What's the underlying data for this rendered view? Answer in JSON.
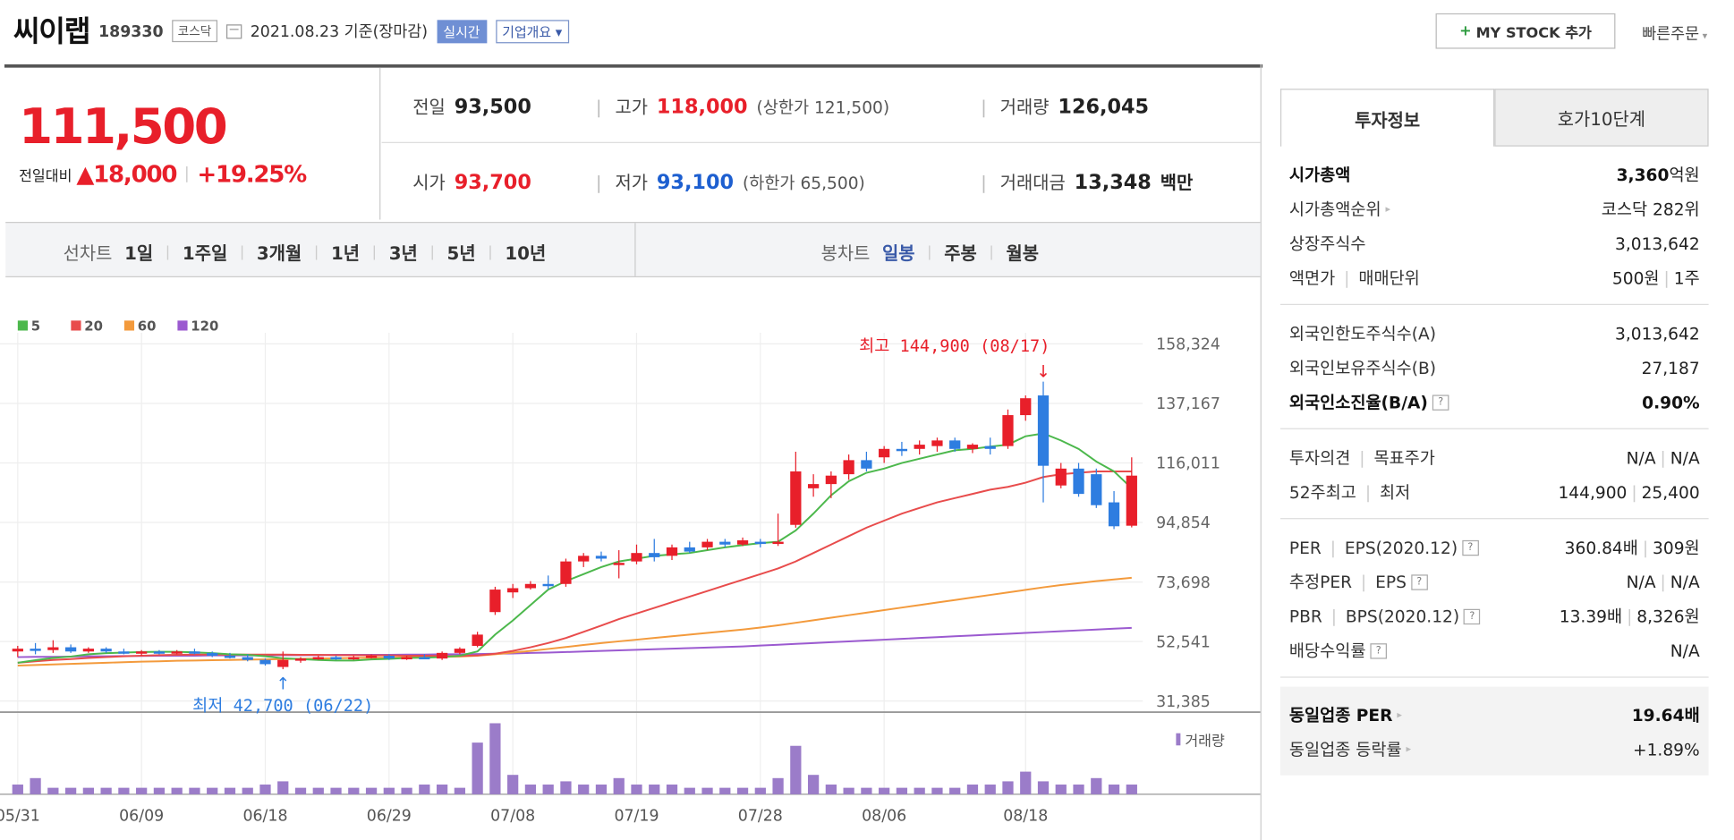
{
  "header": {
    "name": "씨이랩",
    "code": "189330",
    "market": "코스닥",
    "date_text": "2021.08.23 기준(장마감)",
    "realtime": "실시간",
    "overview": "기업개요",
    "my_stock": "MY STOCK 추가",
    "quick_order": "빠른주문"
  },
  "price": {
    "current": "111,500",
    "change_label": "전일대비",
    "change": "18,000",
    "change_pct": "+19.25%"
  },
  "stats": {
    "prev_label": "전일",
    "prev": "93,500",
    "high_label": "고가",
    "high": "118,000",
    "upper_limit": "(상한가 121,500)",
    "volume_label": "거래량",
    "volume": "126,045",
    "open_label": "시가",
    "open": "93,700",
    "low_label": "저가",
    "low": "93,100",
    "lower_limit": "(하한가 65,500)",
    "amount_label": "거래대금",
    "amount": "13,348",
    "amount_unit": "백만"
  },
  "tabs": {
    "line_title": "선차트",
    "line": [
      "1일",
      "1주일",
      "3개월",
      "1년",
      "3년",
      "5년",
      "10년"
    ],
    "candle_title": "봉차트",
    "candle": [
      "일봉",
      "주봉",
      "월봉"
    ],
    "candle_active": "일봉"
  },
  "chart_data": {
    "type": "candlestick",
    "legend": [
      "5",
      "20",
      "60",
      "120"
    ],
    "legend_colors": [
      "#4cb84c",
      "#e84c4c",
      "#f39a3c",
      "#9b5ad0"
    ],
    "up_color": "#e81f2a",
    "down_color": "#2e7de0",
    "y_ticks": [
      "158,324",
      "137,167",
      "116,011",
      "94,854",
      "73,698",
      "52,541",
      "31,385"
    ],
    "ylim": [
      31385,
      158324
    ],
    "x_ticks": [
      "05/31",
      "06/09",
      "06/18",
      "06/29",
      "07/08",
      "07/19",
      "07/28",
      "08/06",
      "08/18"
    ],
    "x_tick_index": [
      0,
      7,
      14,
      21,
      28,
      35,
      42,
      49,
      57
    ],
    "high_label": "최고 144,900 (08/17)",
    "low_label": "최저 42,700 (06/22)",
    "volume_label": "거래량",
    "candles": [
      [
        49000,
        51000,
        47000,
        50000
      ],
      [
        50000,
        52000,
        48000,
        49500
      ],
      [
        49500,
        53000,
        48500,
        50500
      ],
      [
        50500,
        51500,
        48500,
        49000
      ],
      [
        49000,
        50500,
        48500,
        50000
      ],
      [
        50000,
        50500,
        48500,
        49000
      ],
      [
        49000,
        50000,
        48000,
        48500
      ],
      [
        48500,
        49500,
        47500,
        49000
      ],
      [
        49000,
        49500,
        48000,
        48500
      ],
      [
        48500,
        49500,
        48000,
        49000
      ],
      [
        49000,
        50000,
        48000,
        48500
      ],
      [
        48500,
        49000,
        47000,
        47500
      ],
      [
        47500,
        48500,
        46500,
        47000
      ],
      [
        47000,
        48000,
        45500,
        46000
      ],
      [
        46000,
        46500,
        44000,
        44500
      ],
      [
        43500,
        49000,
        42700,
        46000
      ],
      [
        46000,
        47000,
        45000,
        46500
      ],
      [
        46500,
        47500,
        46000,
        47000
      ],
      [
        47000,
        47500,
        46000,
        46500
      ],
      [
        46500,
        47500,
        46000,
        47000
      ],
      [
        47000,
        48000,
        46500,
        47500
      ],
      [
        47500,
        48000,
        46000,
        46500
      ],
      [
        46500,
        47500,
        46000,
        47000
      ],
      [
        47000,
        48000,
        46500,
        46500
      ],
      [
        46500,
        49000,
        46000,
        48500
      ],
      [
        48500,
        50500,
        48000,
        50000
      ],
      [
        51000,
        56000,
        50500,
        55000
      ],
      [
        63000,
        72000,
        62000,
        71000
      ],
      [
        70000,
        73000,
        68000,
        71500
      ],
      [
        71500,
        74000,
        71000,
        73000
      ],
      [
        73000,
        76000,
        71000,
        72500
      ],
      [
        73000,
        82000,
        72000,
        81000
      ],
      [
        81000,
        84000,
        79000,
        83000
      ],
      [
        83000,
        84500,
        81000,
        82000
      ],
      [
        80000,
        85000,
        75000,
        80500
      ],
      [
        81000,
        87000,
        80000,
        84000
      ],
      [
        84000,
        89000,
        81000,
        82500
      ],
      [
        83000,
        87000,
        81500,
        86000
      ],
      [
        86000,
        88000,
        84000,
        84500
      ],
      [
        86000,
        89000,
        85000,
        88000
      ],
      [
        88000,
        89000,
        86000,
        87000
      ],
      [
        87000,
        89500,
        86500,
        88500
      ],
      [
        88000,
        89000,
        86000,
        87500
      ],
      [
        87500,
        98000,
        86500,
        88000
      ],
      [
        94000,
        120000,
        93000,
        113000
      ],
      [
        107000,
        112000,
        104000,
        108500
      ],
      [
        108500,
        113000,
        103500,
        111500
      ],
      [
        112000,
        119000,
        110000,
        117000
      ],
      [
        117000,
        120000,
        113000,
        114000
      ],
      [
        118000,
        122000,
        116000,
        121000
      ],
      [
        121000,
        123500,
        118500,
        120500
      ],
      [
        121000,
        124000,
        119000,
        122500
      ],
      [
        122000,
        125000,
        120000,
        124000
      ],
      [
        124000,
        125000,
        120000,
        121000
      ],
      [
        121000,
        123000,
        119500,
        122500
      ],
      [
        122000,
        125000,
        119000,
        121000
      ],
      [
        122000,
        135000,
        121000,
        133000
      ],
      [
        133000,
        140000,
        131000,
        139000
      ],
      [
        140000,
        144900,
        102000,
        115000
      ],
      [
        108000,
        116000,
        107000,
        114000
      ],
      [
        114000,
        116000,
        104000,
        105000
      ],
      [
        112000,
        114000,
        100000,
        101000
      ],
      [
        102000,
        106000,
        92500,
        93500
      ],
      [
        93700,
        118000,
        93100,
        111500
      ]
    ],
    "volumes": [
      3,
      5,
      2,
      2,
      2,
      2,
      2,
      2,
      2,
      2,
      2,
      2,
      2,
      2,
      3,
      4,
      2,
      2,
      2,
      2,
      2,
      2,
      2,
      3,
      3,
      2,
      16,
      22,
      6,
      3,
      3,
      4,
      3,
      3,
      5,
      3,
      3,
      3,
      2,
      2,
      2,
      2,
      2,
      5,
      15,
      6,
      3,
      2,
      2,
      2,
      2,
      2,
      2,
      2,
      3,
      3,
      4,
      7,
      4,
      3,
      3,
      5,
      3,
      3
    ],
    "ma5": [
      45000,
      45900,
      46700,
      47200,
      48000,
      48400,
      48600,
      48800,
      48900,
      48900,
      48700,
      48400,
      48000,
      47800,
      47300,
      46600,
      46300,
      46000,
      45800,
      45800,
      46200,
      46400,
      46700,
      46800,
      47000,
      47500,
      49000,
      55000,
      60000,
      65500,
      71000,
      74000,
      76500,
      79000,
      81000,
      82000,
      83000,
      83500,
      84000,
      85000,
      86000,
      86800,
      87500,
      88000,
      92000,
      98000,
      104500,
      109500,
      112500,
      114000,
      116000,
      117500,
      119000,
      120500,
      121000,
      121800,
      122500,
      125500,
      126500,
      124000,
      121000,
      116500,
      113000,
      107000
    ],
    "ma20": [
      45000,
      45500,
      46000,
      46300,
      46700,
      47000,
      47300,
      47500,
      47700,
      47800,
      47900,
      47900,
      47900,
      47900,
      47900,
      47900,
      47800,
      47800,
      47700,
      47700,
      47600,
      47600,
      47500,
      47500,
      47400,
      47400,
      47600,
      48200,
      49200,
      50500,
      52000,
      53800,
      56000,
      58200,
      60500,
      62500,
      64500,
      66500,
      68500,
      70500,
      72500,
      74500,
      76500,
      78500,
      81000,
      84000,
      87000,
      90000,
      93000,
      95500,
      98000,
      100000,
      102000,
      103500,
      105000,
      106500,
      107500,
      109000,
      111000,
      112000,
      112500,
      113000,
      113000,
      113000
    ],
    "ma60": [
      44000,
      44200,
      44400,
      44600,
      44800,
      45000,
      45200,
      45400,
      45500,
      45700,
      45800,
      45900,
      46000,
      46100,
      46200,
      46300,
      46400,
      46500,
      46600,
      46700,
      46800,
      46800,
      46900,
      47000,
      47100,
      47200,
      47500,
      48000,
      48600,
      49200,
      49900,
      50600,
      51300,
      52000,
      52600,
      53200,
      53800,
      54400,
      55000,
      55600,
      56200,
      56800,
      57500,
      58300,
      59200,
      60100,
      61000,
      61900,
      62800,
      63700,
      64600,
      65500,
      66400,
      67300,
      68200,
      69100,
      70000,
      70900,
      71800,
      72600,
      73300,
      74000,
      74600,
      75200
    ],
    "ma120": [
      47000,
      47100,
      47100,
      47200,
      47300,
      47300,
      47400,
      47400,
      47500,
      47500,
      47500,
      47600,
      47600,
      47600,
      47600,
      47700,
      47700,
      47700,
      47800,
      47800,
      47800,
      47800,
      47900,
      47900,
      48000,
      48000,
      48100,
      48200,
      48300,
      48500,
      48600,
      48800,
      49000,
      49200,
      49400,
      49600,
      49800,
      50000,
      50200,
      50400,
      50600,
      50800,
      51100,
      51400,
      51700,
      52000,
      52300,
      52600,
      52900,
      53200,
      53500,
      53800,
      54100,
      54400,
      54700,
      55000,
      55300,
      55600,
      55900,
      56200,
      56500,
      56800,
      57100,
      57400
    ]
  },
  "side": {
    "tab_active": "투자정보",
    "tab_other": "호가10단계",
    "groups": [
      [
        {
          "k": "시가총액",
          "bold": true,
          "v": "3,360",
          "v2": "억원"
        },
        {
          "k": "시가총액순위",
          "arrow": true,
          "v": "코스닥 282위"
        },
        {
          "k": "상장주식수",
          "v": "3,013,642"
        },
        {
          "k": "액면가",
          "k2": "매매단위",
          "v": "500원",
          "v3": "1주"
        }
      ],
      [
        {
          "k": "외국인한도주식수(A)",
          "v": "3,013,642"
        },
        {
          "k": "외국인보유주식수(B)",
          "v": "27,187"
        },
        {
          "k": "외국인소진율(B/A)",
          "bold": true,
          "help": true,
          "v": "0.90%",
          "vbold": true
        }
      ],
      [
        {
          "k": "투자의견",
          "k2": "목표주가",
          "v": "N/A",
          "v3": "N/A"
        },
        {
          "k": "52주최고",
          "k2": "최저",
          "v": "144,900",
          "v3": "25,400"
        }
      ],
      [
        {
          "k": "PER",
          "k2": "EPS(2020.12)",
          "help": true,
          "v": "360.84배",
          "v3": "309원"
        },
        {
          "k": "추정PER",
          "k2": "EPS",
          "help": true,
          "v": "N/A",
          "v3": "N/A"
        },
        {
          "k": "PBR",
          "k2": "BPS(2020.12)",
          "help": true,
          "v": "13.39배",
          "v3": "8,326원"
        },
        {
          "k": "배당수익률",
          "help": true,
          "v": "N/A"
        }
      ],
      [
        {
          "k": "동일업종 PER",
          "bold": true,
          "arrow": true,
          "v": "19.64배",
          "vbold": true
        },
        {
          "k": "동일업종 등락률",
          "arrow": true,
          "v": "+1.89%",
          "red": true
        }
      ]
    ]
  }
}
